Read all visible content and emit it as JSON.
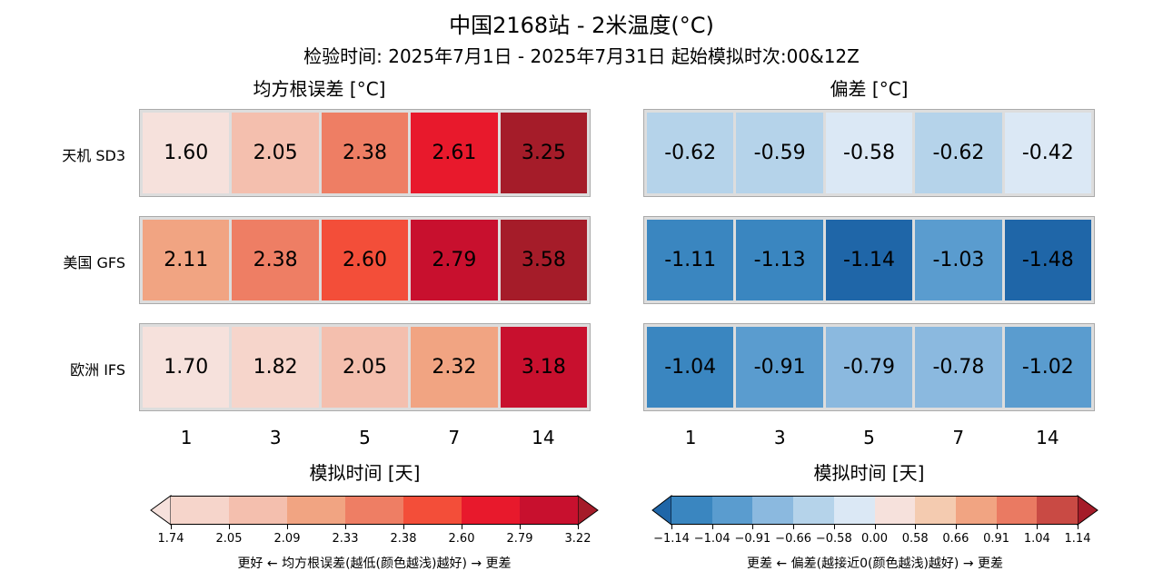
{
  "title": "中国2168站 - 2米温度(°C)",
  "subtitle": "检验时间: 2025年7月1日 - 2025年7月31日 起始模拟时次:00&12Z",
  "chart_data": [
    {
      "type": "heatmap",
      "title": "均方根误差 [°C]",
      "xlabel": "模拟时间 [天]",
      "x": [
        "1",
        "3",
        "5",
        "7",
        "14"
      ],
      "rows": [
        "天机 SD3",
        "美国 GFS",
        "欧洲 IFS"
      ],
      "values": [
        [
          "1.60",
          "2.05",
          "2.38",
          "2.61",
          "3.25"
        ],
        [
          "2.11",
          "2.38",
          "2.60",
          "2.79",
          "3.58"
        ],
        [
          "1.70",
          "1.82",
          "2.05",
          "2.32",
          "3.18"
        ]
      ],
      "colors": [
        [
          "#f6e1dc",
          "#f4bfae",
          "#ee7e64",
          "#e8192c",
          "#a51c29"
        ],
        [
          "#f1a482",
          "#ee7e64",
          "#f34e39",
          "#c8102e",
          "#a51c29"
        ],
        [
          "#f6e1dc",
          "#f6d5cb",
          "#f4bfae",
          "#f1a482",
          "#c8102e"
        ]
      ],
      "colorbar": {
        "ticks": [
          "1.74",
          "2.05",
          "2.09",
          "2.33",
          "2.38",
          "2.60",
          "2.79",
          "3.22"
        ],
        "colors": [
          "#f6d5cb",
          "#f4bfae",
          "#f1a482",
          "#ee7e64",
          "#f34e39",
          "#e8192c",
          "#c8102e"
        ],
        "under": "#f6e1dc",
        "over": "#a51c29",
        "label": "更好 ← 均方根误差(越低(颜色越浅)越好) → 更差"
      }
    },
    {
      "type": "heatmap",
      "title": "偏差 [°C]",
      "xlabel": "模拟时间 [天]",
      "x": [
        "1",
        "3",
        "5",
        "7",
        "14"
      ],
      "rows": [
        "天机 SD3",
        "美国 GFS",
        "欧洲 IFS"
      ],
      "values": [
        [
          "-0.62",
          "-0.59",
          "-0.58",
          "-0.62",
          "-0.42"
        ],
        [
          "-1.11",
          "-1.13",
          "-1.14",
          "-1.03",
          "-1.48"
        ],
        [
          "-1.04",
          "-0.91",
          "-0.79",
          "-0.78",
          "-1.02"
        ]
      ],
      "colors": [
        [
          "#b5d3ea",
          "#b5d3ea",
          "#dbe8f5",
          "#b5d3ea",
          "#dbe8f5"
        ],
        [
          "#3a86c0",
          "#3a86c0",
          "#1f66a8",
          "#5a9ccf",
          "#1f66a8"
        ],
        [
          "#3a86c0",
          "#5a9ccf",
          "#8bb9df",
          "#8bb9df",
          "#5a9ccf"
        ]
      ],
      "colorbar": {
        "ticks": [
          "−1.14",
          "−1.04",
          "−0.91",
          "−0.66",
          "−0.58",
          "0.00",
          "0.58",
          "0.66",
          "0.91",
          "1.04",
          "1.14"
        ],
        "colors": [
          "#3a86c0",
          "#5a9ccf",
          "#8bb9df",
          "#b5d3ea",
          "#dbe8f5",
          "#f6e1dc",
          "#f4cbb0",
          "#f1a482",
          "#ea7a62",
          "#c94a44"
        ],
        "under": "#1f66a8",
        "over": "#a51c29",
        "label": "更差 ← 偏差(越接近0(颜色越浅)越好) → 更差"
      }
    }
  ]
}
